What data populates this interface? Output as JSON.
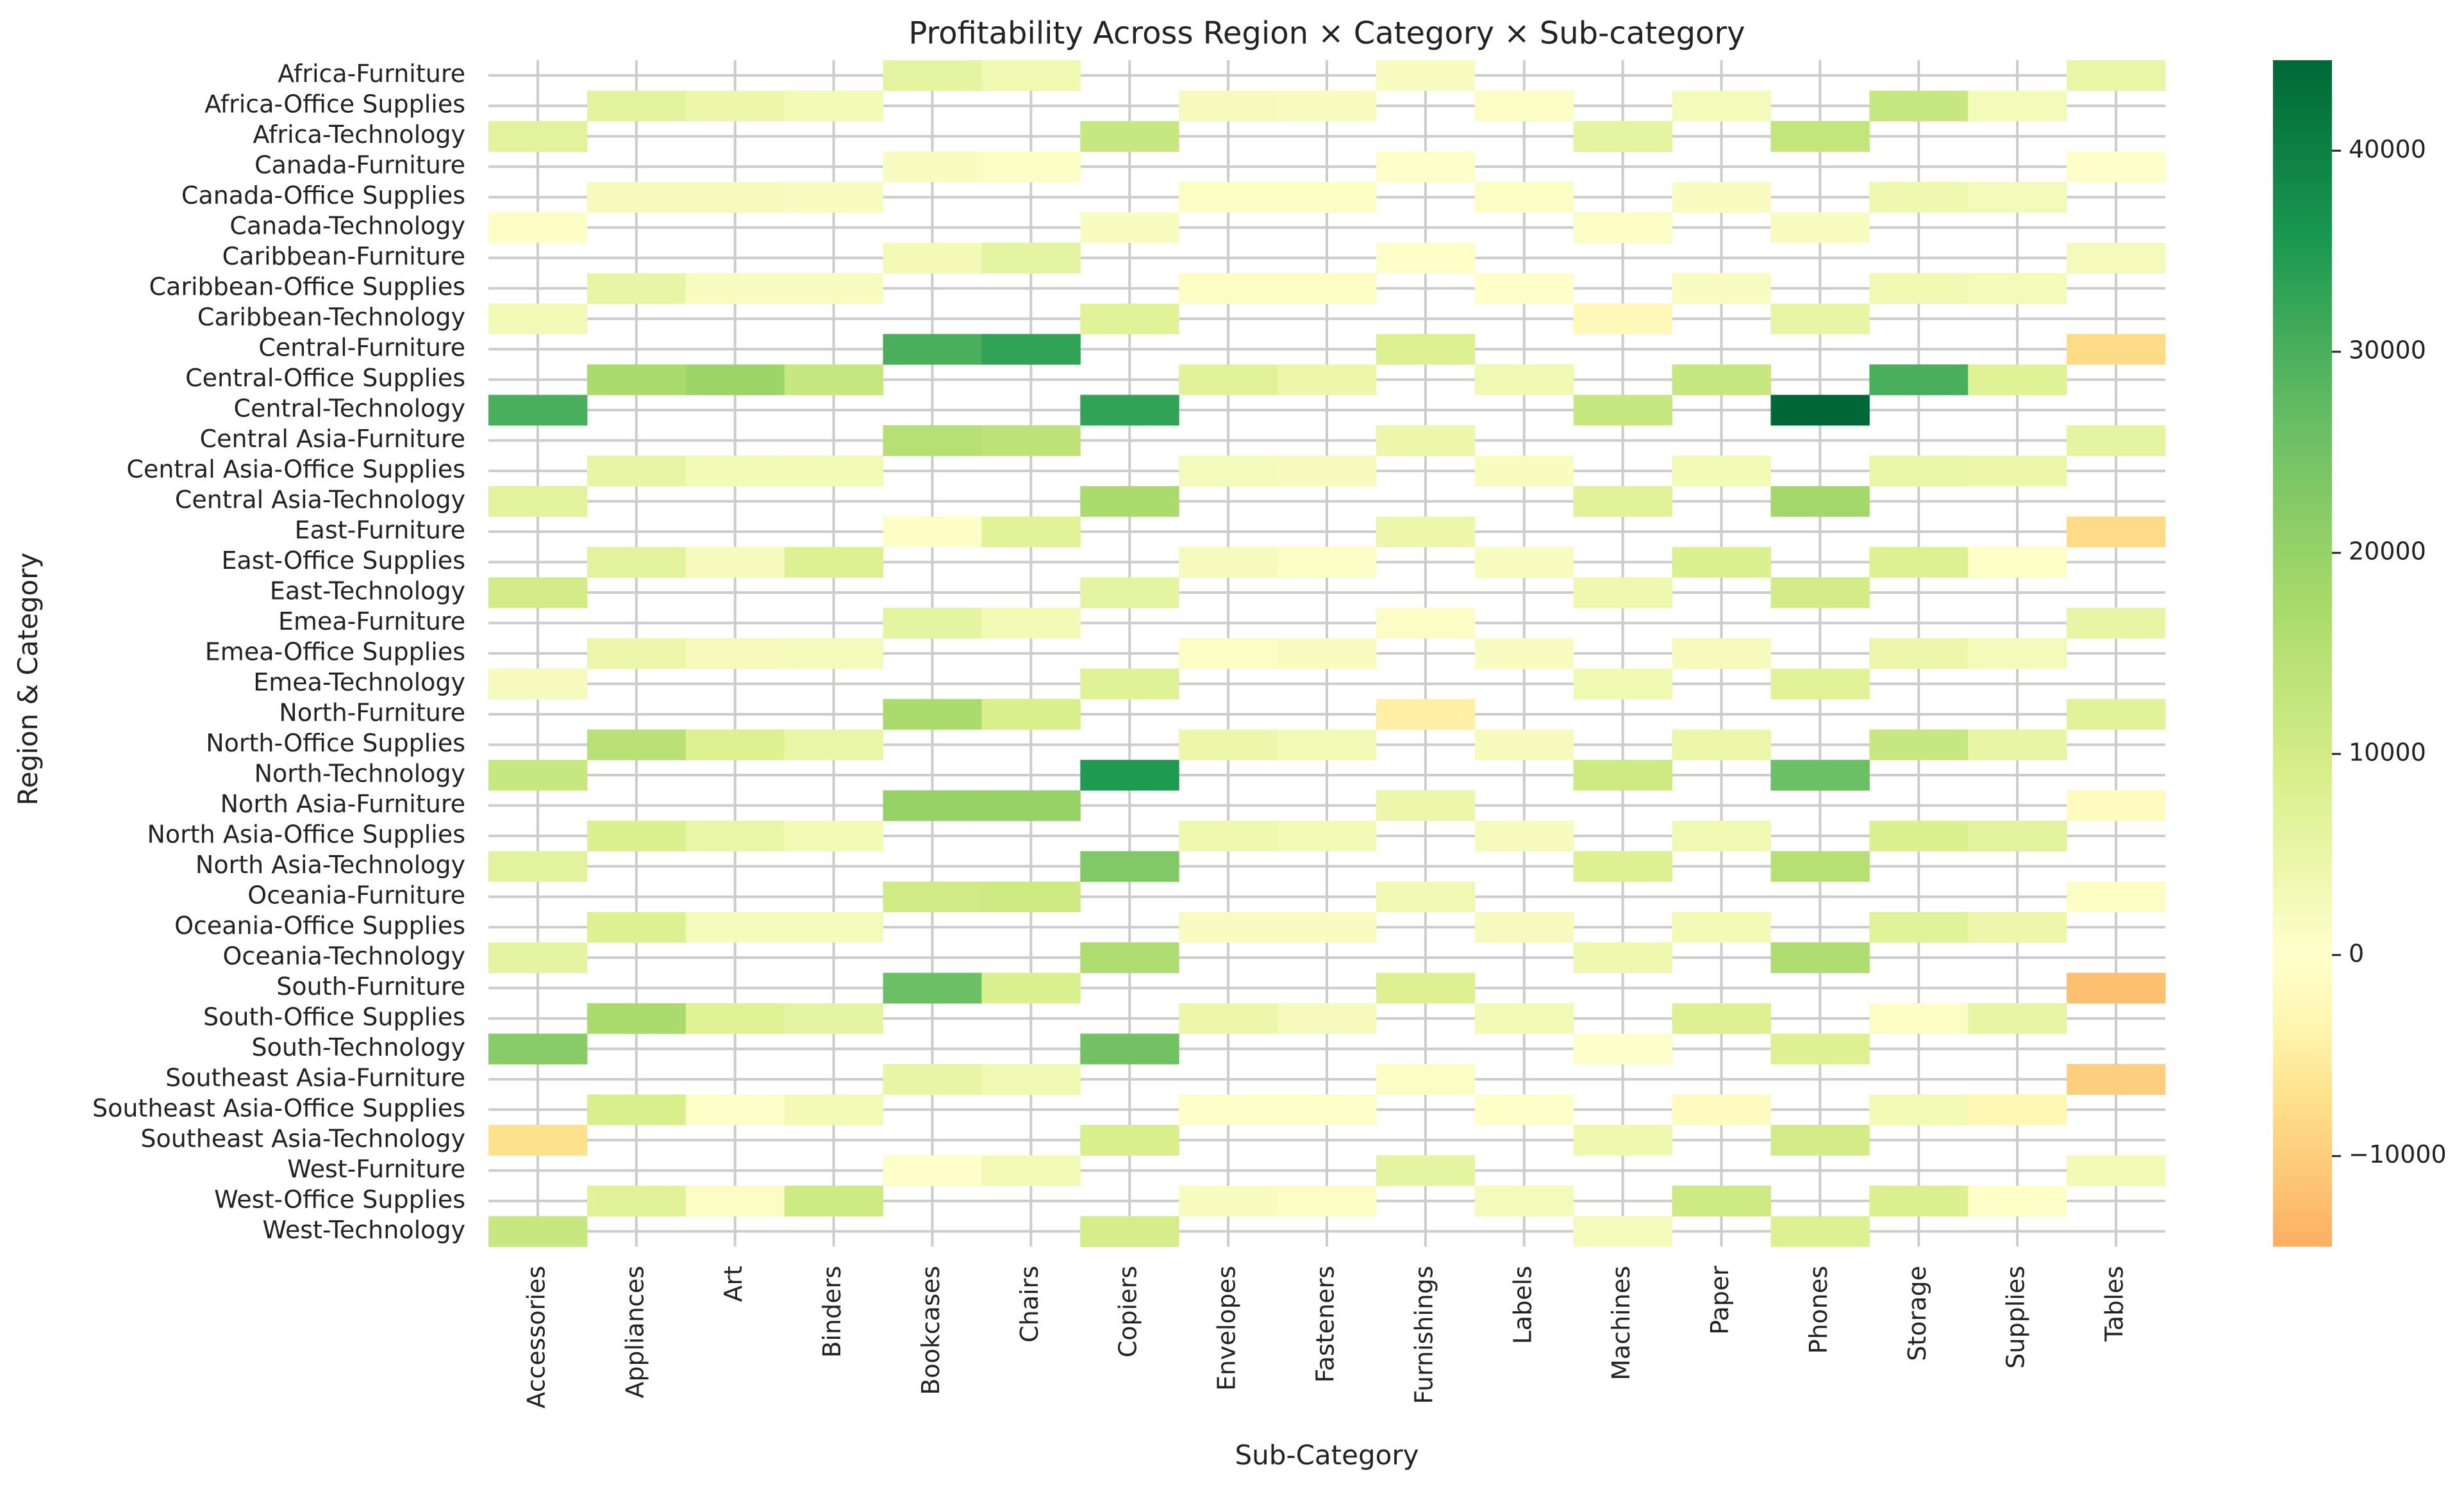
{
  "chart_data": {
    "type": "heatmap",
    "title": "Profitability Across Region × Category × Sub-category",
    "xlabel": "Sub-Category",
    "ylabel": "Region & Category",
    "grid": true,
    "colormap": "RdYlGn (centered at 0)",
    "colors": {
      "negative": "#fdbf6f",
      "zero": "#ffffcc",
      "low_positive": "#d9ef8b",
      "mid_positive": "#66bd63",
      "high_positive": "#006837",
      "grid": "#cccccc"
    },
    "colorbar": {
      "min": -14500,
      "max": 44500,
      "ticks": [
        -10000,
        0,
        10000,
        20000,
        30000,
        40000
      ],
      "tick_labels": [
        "−10000",
        "0",
        "10000",
        "20000",
        "30000",
        "40000"
      ]
    },
    "x_categories": [
      "Accessories",
      "Appliances",
      "Art",
      "Binders",
      "Bookcases",
      "Chairs",
      "Copiers",
      "Envelopes",
      "Fasteners",
      "Furnishings",
      "Labels",
      "Machines",
      "Paper",
      "Phones",
      "Storage",
      "Supplies",
      "Tables"
    ],
    "y_categories": [
      "Africa-Furniture",
      "Africa-Office Supplies",
      "Africa-Technology",
      "Canada-Furniture",
      "Canada-Office Supplies",
      "Canada-Technology",
      "Caribbean-Furniture",
      "Caribbean-Office Supplies",
      "Caribbean-Technology",
      "Central-Furniture",
      "Central-Office Supplies",
      "Central-Technology",
      "Central Asia-Furniture",
      "Central Asia-Office Supplies",
      "Central Asia-Technology",
      "East-Furniture",
      "East-Office Supplies",
      "East-Technology",
      "Emea-Furniture",
      "Emea-Office Supplies",
      "Emea-Technology",
      "North-Furniture",
      "North-Office Supplies",
      "North-Technology",
      "North Asia-Furniture",
      "North Asia-Office Supplies",
      "North Asia-Technology",
      "Oceania-Furniture",
      "Oceania-Office Supplies",
      "Oceania-Technology",
      "South-Furniture",
      "South-Office Supplies",
      "South-Technology",
      "Southeast Asia-Furniture",
      "Southeast Asia-Office Supplies",
      "Southeast Asia-Technology",
      "West-Furniture",
      "West-Office Supplies",
      "West-Technology"
    ],
    "values": [
      [
        null,
        null,
        null,
        null,
        6000,
        3500,
        null,
        null,
        null,
        1500,
        null,
        null,
        null,
        null,
        null,
        null,
        5000
      ],
      [
        null,
        6500,
        4500,
        3000,
        null,
        null,
        null,
        2000,
        1500,
        null,
        1000,
        null,
        2500,
        null,
        12000,
        2500,
        null
      ],
      [
        6500,
        null,
        null,
        null,
        null,
        null,
        12000,
        null,
        null,
        null,
        null,
        6000,
        null,
        13000,
        null,
        null,
        null
      ],
      [
        null,
        null,
        null,
        null,
        1500,
        1000,
        null,
        null,
        null,
        500,
        null,
        null,
        null,
        null,
        null,
        null,
        500
      ],
      [
        null,
        2000,
        2000,
        1500,
        null,
        null,
        null,
        1000,
        1000,
        null,
        1000,
        null,
        1500,
        null,
        4000,
        2500,
        null
      ],
      [
        800,
        null,
        null,
        null,
        null,
        null,
        1500,
        null,
        null,
        null,
        null,
        1000,
        null,
        1500,
        null,
        null,
        null
      ],
      [
        null,
        null,
        null,
        null,
        3000,
        6000,
        null,
        null,
        null,
        -500,
        null,
        null,
        null,
        null,
        null,
        null,
        2500
      ],
      [
        null,
        5500,
        1500,
        1500,
        null,
        null,
        null,
        1000,
        1000,
        null,
        500,
        null,
        1500,
        null,
        3500,
        2500,
        null
      ],
      [
        3000,
        null,
        null,
        null,
        null,
        null,
        7000,
        null,
        null,
        null,
        null,
        -2500,
        null,
        5500,
        null,
        null,
        null
      ],
      [
        null,
        null,
        null,
        null,
        30000,
        33000,
        null,
        null,
        null,
        8000,
        null,
        null,
        null,
        null,
        null,
        null,
        -8000
      ],
      [
        null,
        17000,
        19000,
        12000,
        null,
        null,
        null,
        7000,
        4500,
        null,
        3500,
        null,
        12000,
        null,
        30000,
        7500,
        null
      ],
      [
        30000,
        null,
        null,
        null,
        null,
        null,
        33000,
        null,
        null,
        null,
        null,
        12000,
        null,
        44500,
        null,
        null,
        null
      ],
      [
        null,
        null,
        null,
        null,
        15000,
        14000,
        null,
        null,
        null,
        4500,
        null,
        null,
        null,
        null,
        null,
        null,
        6000
      ],
      [
        null,
        5500,
        3000,
        3000,
        null,
        null,
        null,
        2500,
        2000,
        null,
        1500,
        null,
        3000,
        null,
        5000,
        4500,
        null
      ],
      [
        6500,
        null,
        null,
        null,
        null,
        null,
        17000,
        null,
        null,
        null,
        null,
        7000,
        null,
        18000,
        null,
        null,
        null
      ],
      [
        null,
        null,
        null,
        null,
        800,
        7000,
        null,
        null,
        null,
        4500,
        null,
        null,
        null,
        null,
        null,
        null,
        -8000
      ],
      [
        null,
        6500,
        2000,
        8000,
        null,
        null,
        null,
        2000,
        1000,
        null,
        1500,
        null,
        8500,
        null,
        8000,
        500,
        null
      ],
      [
        10000,
        null,
        null,
        null,
        null,
        null,
        6000,
        null,
        null,
        null,
        null,
        4000,
        null,
        10000,
        null,
        null,
        null
      ],
      [
        null,
        null,
        null,
        null,
        6000,
        3000,
        null,
        null,
        null,
        1000,
        null,
        null,
        null,
        null,
        null,
        null,
        5500
      ],
      [
        null,
        4500,
        2000,
        2500,
        null,
        null,
        null,
        1000,
        1500,
        null,
        1500,
        null,
        2000,
        null,
        4500,
        2500,
        null
      ],
      [
        2000,
        null,
        null,
        null,
        null,
        null,
        7500,
        null,
        null,
        null,
        null,
        3500,
        null,
        7000,
        null,
        null,
        null
      ],
      [
        null,
        null,
        null,
        null,
        17000,
        9000,
        null,
        null,
        null,
        -4500,
        null,
        null,
        null,
        null,
        null,
        null,
        7000
      ],
      [
        null,
        14500,
        8000,
        5000,
        null,
        null,
        null,
        4500,
        3000,
        null,
        2000,
        null,
        4500,
        null,
        12000,
        5500,
        null
      ],
      [
        12000,
        null,
        null,
        null,
        null,
        null,
        35000,
        null,
        null,
        null,
        null,
        11000,
        null,
        26000,
        null,
        null,
        null
      ],
      [
        null,
        null,
        null,
        null,
        20000,
        20000,
        null,
        null,
        null,
        4500,
        null,
        null,
        null,
        null,
        null,
        null,
        -1500
      ],
      [
        null,
        8500,
        5000,
        3000,
        null,
        null,
        null,
        4000,
        3000,
        null,
        2000,
        null,
        3500,
        null,
        8500,
        6500,
        null
      ],
      [
        6500,
        null,
        null,
        null,
        null,
        null,
        23000,
        null,
        null,
        null,
        null,
        8000,
        null,
        15000,
        null,
        null,
        null
      ],
      [
        null,
        null,
        null,
        null,
        10500,
        11000,
        null,
        null,
        null,
        3500,
        null,
        null,
        null,
        null,
        null,
        null,
        1000
      ],
      [
        null,
        8000,
        2500,
        2500,
        null,
        null,
        null,
        1500,
        1500,
        null,
        2000,
        null,
        3000,
        null,
        7000,
        4500,
        null
      ],
      [
        6000,
        null,
        null,
        null,
        null,
        null,
        16000,
        null,
        null,
        null,
        null,
        4000,
        null,
        16000,
        null,
        null,
        null
      ],
      [
        null,
        null,
        null,
        null,
        26000,
        8500,
        null,
        null,
        null,
        8000,
        null,
        null,
        null,
        null,
        null,
        null,
        -12000
      ],
      [
        null,
        17000,
        7500,
        6000,
        null,
        null,
        null,
        4500,
        2000,
        null,
        3000,
        null,
        8000,
        null,
        1000,
        5500,
        null
      ],
      [
        22000,
        null,
        null,
        null,
        null,
        null,
        25000,
        null,
        null,
        null,
        null,
        300,
        null,
        8000,
        null,
        null,
        null
      ],
      [
        null,
        null,
        null,
        null,
        5500,
        3500,
        null,
        null,
        null,
        1000,
        null,
        null,
        null,
        null,
        null,
        null,
        -10000
      ],
      [
        null,
        9000,
        500,
        3000,
        null,
        null,
        null,
        500,
        500,
        null,
        500,
        null,
        -1500,
        null,
        3000,
        -3000,
        null
      ],
      [
        -7000,
        null,
        null,
        null,
        null,
        null,
        9000,
        null,
        null,
        null,
        null,
        4000,
        null,
        10000,
        null,
        null,
        null
      ],
      [
        null,
        null,
        null,
        null,
        500,
        3000,
        null,
        null,
        null,
        6000,
        null,
        null,
        null,
        null,
        null,
        null,
        3000
      ],
      [
        null,
        7000,
        1000,
        11000,
        null,
        null,
        null,
        1500,
        1000,
        null,
        2500,
        null,
        11000,
        null,
        8500,
        500,
        null
      ],
      [
        12000,
        null,
        null,
        null,
        null,
        null,
        9500,
        null,
        null,
        null,
        null,
        2500,
        null,
        8000,
        null,
        null,
        null
      ]
    ]
  }
}
